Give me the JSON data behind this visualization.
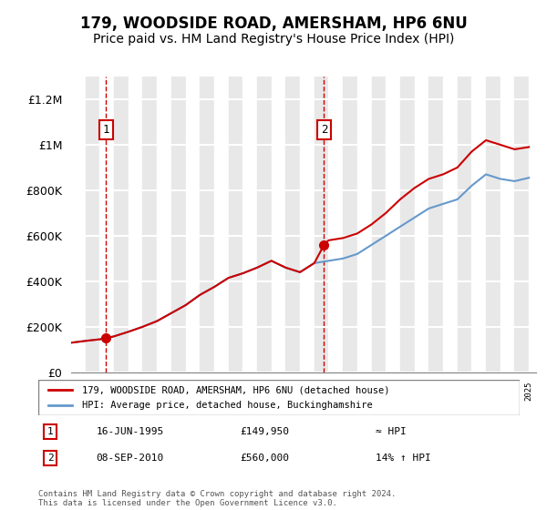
{
  "title": "179, WOODSIDE ROAD, AMERSHAM, HP6 6NU",
  "subtitle": "Price paid vs. HM Land Registry's House Price Index (HPI)",
  "title_fontsize": 12,
  "subtitle_fontsize": 10,
  "ylabel_ticks": [
    "£0",
    "£200K",
    "£400K",
    "£600K",
    "£800K",
    "£1M",
    "£1.2M"
  ],
  "ytick_values": [
    0,
    200000,
    400000,
    600000,
    800000,
    1000000,
    1200000
  ],
  "ylim": [
    0,
    1300000
  ],
  "xlim_start": 1993,
  "xlim_end": 2025.5,
  "background_color": "#ffffff",
  "plot_bg_color": "#f0f0f0",
  "hatch_color": "#e0e0e0",
  "grid_color": "#ffffff",
  "red_line_color": "#cc0000",
  "blue_line_color": "#6699cc",
  "sale1_x": 1995.45,
  "sale1_y": 149950,
  "sale2_x": 2010.68,
  "sale2_y": 560000,
  "vline1_x": 1995.45,
  "vline2_x": 2010.68,
  "vline_color": "#cc0000",
  "marker_color": "#cc0000",
  "legend_label_red": "179, WOODSIDE ROAD, AMERSHAM, HP6 6NU (detached house)",
  "legend_label_blue": "HPI: Average price, detached house, Buckinghamshire",
  "annotation1_label": "1",
  "annotation2_label": "2",
  "table_row1": [
    "1",
    "16-JUN-1995",
    "£149,950",
    "≈ HPI"
  ],
  "table_row2": [
    "2",
    "08-SEP-2010",
    "£560,000",
    "14% ↑ HPI"
  ],
  "footnote": "Contains HM Land Registry data © Crown copyright and database right 2024.\nThis data is licensed under the Open Government Licence v3.0.",
  "hpi_years": [
    1993,
    1994,
    1995,
    1996,
    1997,
    1998,
    1999,
    2000,
    2001,
    2002,
    2003,
    2004,
    2005,
    2006,
    2007,
    2008,
    2009,
    2010,
    2011,
    2012,
    2013,
    2014,
    2015,
    2016,
    2017,
    2018,
    2019,
    2020,
    2021,
    2022,
    2023,
    2024,
    2025
  ],
  "hpi_values": [
    130000,
    138000,
    145000,
    158000,
    178000,
    200000,
    225000,
    260000,
    295000,
    340000,
    375000,
    415000,
    435000,
    460000,
    490000,
    460000,
    440000,
    480000,
    490000,
    500000,
    520000,
    560000,
    600000,
    640000,
    680000,
    720000,
    740000,
    760000,
    820000,
    870000,
    850000,
    840000,
    855000
  ],
  "red_years": [
    1993,
    1994,
    1995,
    1995.45,
    1996,
    1997,
    1998,
    1999,
    2000,
    2001,
    2002,
    2003,
    2004,
    2005,
    2006,
    2007,
    2008,
    2009,
    2010,
    2010.68,
    2011,
    2012,
    2013,
    2014,
    2015,
    2016,
    2017,
    2018,
    2019,
    2020,
    2021,
    2022,
    2023,
    2024,
    2025
  ],
  "red_values": [
    130000,
    138000,
    145000,
    149950,
    158000,
    178000,
    200000,
    225000,
    260000,
    295000,
    340000,
    375000,
    415000,
    435000,
    460000,
    490000,
    460000,
    440000,
    480000,
    560000,
    580000,
    590000,
    610000,
    650000,
    700000,
    760000,
    810000,
    850000,
    870000,
    900000,
    970000,
    1020000,
    1000000,
    980000,
    990000
  ]
}
